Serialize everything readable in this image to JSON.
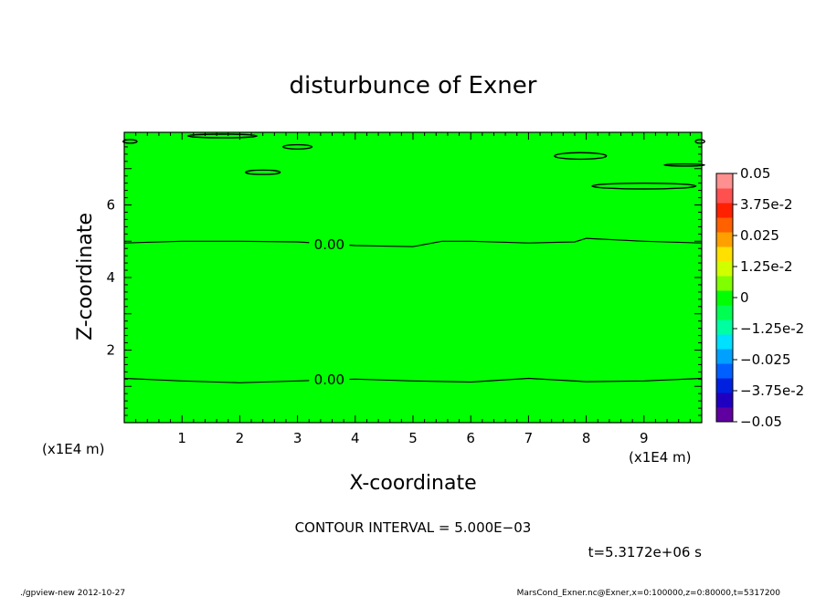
{
  "chart_data": {
    "type": "heatmap",
    "title": "disturbunce of Exner",
    "xlabel": "X-coordinate",
    "ylabel": "Z-coordinate",
    "x_scale_note": "(x1E4 m)",
    "y_scale_note": "(x1E4 m)",
    "xlim": [
      0,
      10
    ],
    "ylim": [
      0,
      8
    ],
    "x_ticks": [
      1,
      2,
      3,
      4,
      5,
      6,
      7,
      8,
      9
    ],
    "x_tick_labels": [
      "1",
      "2",
      "3",
      "4",
      "5",
      "6",
      "7",
      "8",
      "9"
    ],
    "y_ticks": [
      2,
      4,
      6
    ],
    "y_tick_labels": [
      "2",
      "4",
      "6"
    ],
    "fill_value": 0,
    "fill_color": "#00ff00",
    "contour_label": "0.00",
    "contours": [
      {
        "name": "zero-lower",
        "label_at": [
          3.55,
          1.18
        ],
        "points": [
          [
            0,
            1.22
          ],
          [
            1,
            1.15
          ],
          [
            2,
            1.1
          ],
          [
            3,
            1.15
          ],
          [
            4,
            1.2
          ],
          [
            5,
            1.15
          ],
          [
            6,
            1.12
          ],
          [
            7,
            1.22
          ],
          [
            8,
            1.13
          ],
          [
            9,
            1.15
          ],
          [
            10,
            1.22
          ]
        ]
      },
      {
        "name": "zero-upper",
        "label_at": [
          3.55,
          4.9
        ],
        "points": [
          [
            0,
            4.95
          ],
          [
            1,
            5.0
          ],
          [
            2,
            5.0
          ],
          [
            3,
            4.98
          ],
          [
            4,
            4.88
          ],
          [
            5,
            4.85
          ],
          [
            5.5,
            5.0
          ],
          [
            6,
            5.0
          ],
          [
            7,
            4.95
          ],
          [
            7.8,
            4.98
          ],
          [
            8,
            5.08
          ],
          [
            9,
            5.0
          ],
          [
            10,
            4.95
          ]
        ]
      }
    ],
    "contour_islands": [
      {
        "name": "island-a",
        "cx": 1.7,
        "cy": 7.9,
        "rx": 0.6,
        "ry": 0.05
      },
      {
        "name": "island-b",
        "cx": 2.4,
        "cy": 6.9,
        "rx": 0.3,
        "ry": 0.06
      },
      {
        "name": "island-c",
        "cx": 3.0,
        "cy": 7.6,
        "rx": 0.25,
        "ry": 0.06
      },
      {
        "name": "island-d",
        "cx": 7.9,
        "cy": 7.35,
        "rx": 0.45,
        "ry": 0.09
      },
      {
        "name": "island-e",
        "cx": 9.0,
        "cy": 6.52,
        "rx": 0.9,
        "ry": 0.08
      },
      {
        "name": "island-f",
        "cx": 9.7,
        "cy": 7.1,
        "rx": 0.35,
        "ry": 0.03
      },
      {
        "name": "island-g",
        "cx": 0.1,
        "cy": 7.75,
        "rx": 0.12,
        "ry": 0.05
      },
      {
        "name": "island-h",
        "cx": 9.97,
        "cy": 7.75,
        "rx": 0.08,
        "ry": 0.05
      }
    ],
    "colorbar": {
      "range": [
        -0.05,
        0.05
      ],
      "colors": [
        "#6000a0",
        "#2000c0",
        "#0020e0",
        "#0060ff",
        "#00a0ff",
        "#00e0ff",
        "#00ffa0",
        "#00ff50",
        "#00ff00",
        "#80ff00",
        "#d0ff00",
        "#ffe000",
        "#ffa000",
        "#ff6000",
        "#ff2000",
        "#ff5050",
        "#ff9090"
      ],
      "tick_labels": [
        "0.05",
        "3.75e-2",
        "0.025",
        "1.25e-2",
        "0",
        "−1.25e-2",
        "−0.025",
        "−3.75e-2",
        "−0.05"
      ]
    },
    "contour_interval_text": "CONTOUR INTERVAL = 5.000E−03",
    "time_text": "t=5.3172e+06 s",
    "footer_left": "./gpview-new   2012-10-27",
    "footer_right": "MarsCond_Exner.nc@Exner,x=0:100000,z=0:80000,t=5317200"
  }
}
